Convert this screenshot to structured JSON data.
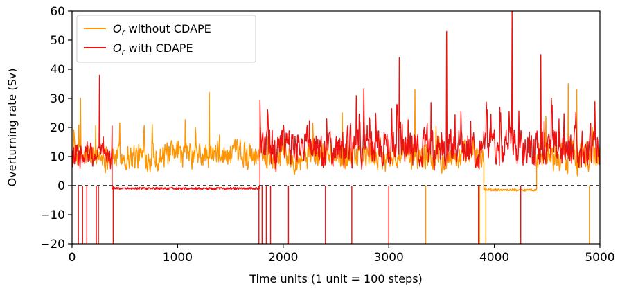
{
  "chart_data": {
    "type": "line",
    "xlabel": "Time units (1 unit = 100 steps)",
    "ylabel": "Overturning rate (Sv)",
    "xlim": [
      0,
      5000
    ],
    "ylim": [
      -20,
      60
    ],
    "xticks": [
      0,
      1000,
      2000,
      3000,
      4000,
      5000
    ],
    "yticks": [
      -20,
      -10,
      0,
      10,
      20,
      30,
      40,
      50,
      60
    ],
    "ytick_labels": [
      "−20",
      "−10",
      "0",
      "10",
      "20",
      "30",
      "40",
      "50",
      "60"
    ],
    "reference_line": {
      "y": 0,
      "style": "dashed",
      "color": "#000000"
    },
    "grid": false,
    "legend_position": "top-left",
    "series": [
      {
        "name_symbol": "O",
        "name_subscript": "r",
        "name_suffix": " without CDAPE",
        "color": "#ff9500",
        "segments": [
          {
            "x_start": 0,
            "x_end": 3900,
            "mean": 10,
            "amplitude": 7,
            "spikes": [
              [
                80,
                30
              ],
              [
                1300,
                32
              ],
              [
                2560,
                25
              ],
              [
                3250,
                33
              ]
            ]
          },
          {
            "x_start": 3900,
            "x_end": 4400,
            "level": -1.5
          },
          {
            "x_start": 4400,
            "x_end": 5000,
            "mean": 10,
            "amplitude": 8,
            "spikes": [
              [
                4700,
                35
              ],
              [
                4780,
                33
              ]
            ]
          }
        ],
        "negative_spikes": [
          3350,
          3860,
          3920,
          4900
        ]
      },
      {
        "name_symbol": "O",
        "name_subscript": "r",
        "name_suffix": " with CDAPE",
        "color": "#ee1111",
        "segments": [
          {
            "x_start": 0,
            "x_end": 380,
            "mean": 10,
            "amplitude": 7,
            "spikes": [
              [
                260,
                38
              ]
            ]
          },
          {
            "x_start": 380,
            "x_end": 1780,
            "level": -1
          },
          {
            "x_start": 1780,
            "x_end": 5000,
            "mean": 13,
            "amplitude": 10,
            "spikes": [
              [
                3100,
                44
              ],
              [
                3550,
                53
              ],
              [
                4170,
                60
              ],
              [
                4440,
                45
              ]
            ]
          }
        ],
        "negative_spikes": [
          60,
          100,
          140,
          230,
          250,
          390,
          1770,
          1800,
          1840,
          1880,
          2050,
          2400,
          2650,
          3000,
          3850,
          4250
        ]
      }
    ]
  }
}
